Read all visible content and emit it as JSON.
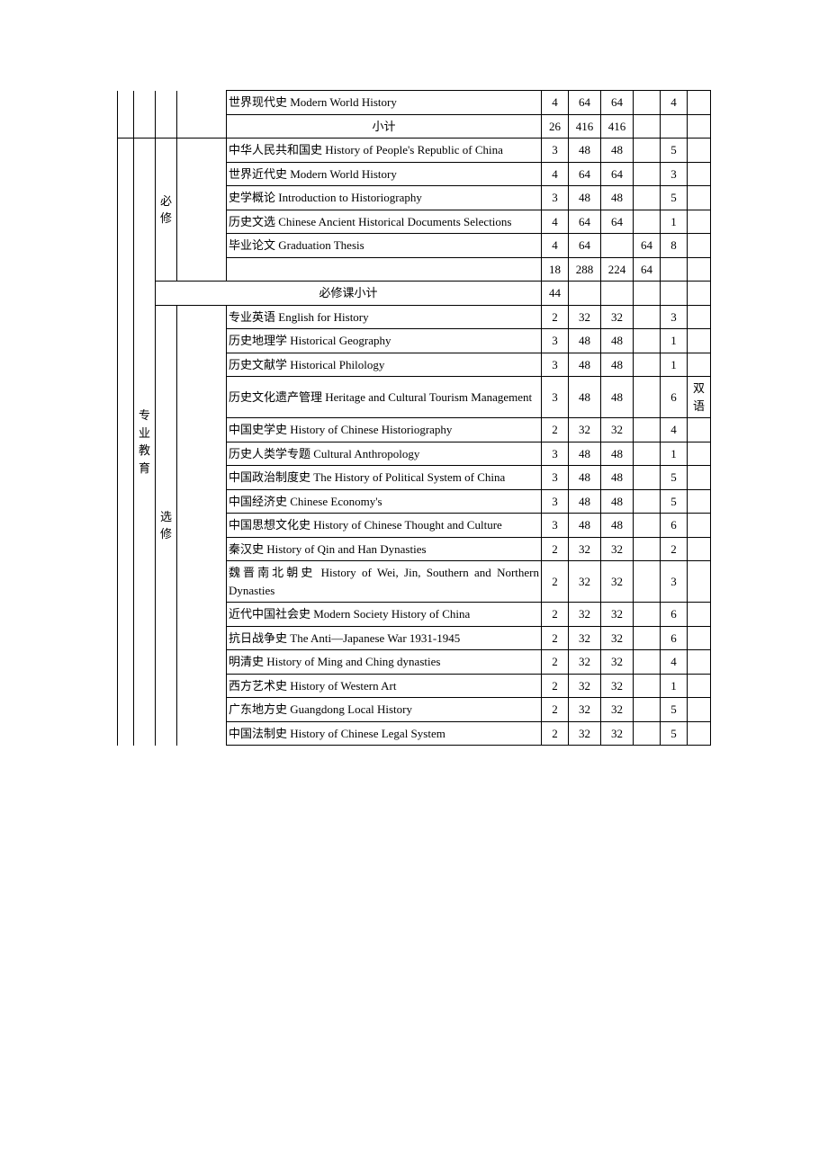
{
  "table": {
    "section1_category_label": "专业教育",
    "section1_type_required": "必修",
    "section1_type_elective": "选修",
    "top_rows": [
      {
        "course": "世界现代史 Modern World History",
        "c1": "4",
        "c2": "64",
        "c3": "64",
        "c4": "",
        "c5": "4",
        "c6": ""
      },
      {
        "course": "小计",
        "c1": "26",
        "c2": "416",
        "c3": "416",
        "c4": "",
        "c5": "",
        "c6": ""
      }
    ],
    "required_rows": [
      {
        "course": "中华人民共和国史 History of People's Republic of China",
        "c1": "3",
        "c2": "48",
        "c3": "48",
        "c4": "",
        "c5": "5",
        "c6": ""
      },
      {
        "course": "世界近代史 Modern World History",
        "c1": "4",
        "c2": "64",
        "c3": "64",
        "c4": "",
        "c5": "3",
        "c6": ""
      },
      {
        "course": "史学概论 Introduction to Historiography",
        "c1": "3",
        "c2": "48",
        "c3": "48",
        "c4": "",
        "c5": "5",
        "c6": ""
      },
      {
        "course": "历史文选 Chinese Ancient Historical Documents Selections",
        "c1": "4",
        "c2": "64",
        "c3": "64",
        "c4": "",
        "c5": "1",
        "c6": ""
      },
      {
        "course": "毕业论文 Graduation Thesis",
        "c1": "4",
        "c2": "64",
        "c3": "",
        "c4": "64",
        "c5": "8",
        "c6": ""
      },
      {
        "course": "",
        "c1": "18",
        "c2": "288",
        "c3": "224",
        "c4": "64",
        "c5": "",
        "c6": ""
      }
    ],
    "req_subtotal": {
      "course": "必修课小计",
      "c1": "44",
      "c2": "",
      "c3": "",
      "c4": "",
      "c5": "",
      "c6": ""
    },
    "elective_rows": [
      {
        "course": "专业英语 English for History",
        "c1": "2",
        "c2": "32",
        "c3": "32",
        "c4": "",
        "c5": "3",
        "c6": ""
      },
      {
        "course": "历史地理学 Historical Geography",
        "c1": "3",
        "c2": "48",
        "c3": "48",
        "c4": "",
        "c5": "1",
        "c6": ""
      },
      {
        "course": "历史文献学 Historical Philology",
        "c1": "3",
        "c2": "48",
        "c3": "48",
        "c4": "",
        "c5": "1",
        "c6": ""
      },
      {
        "course": "历史文化遗产管理 Heritage and Cultural Tourism Management",
        "c1": "3",
        "c2": "48",
        "c3": "48",
        "c4": "",
        "c5": "6",
        "c6": "双语"
      },
      {
        "course": "中国史学史 History of Chinese Historiography",
        "c1": "2",
        "c2": "32",
        "c3": "32",
        "c4": "",
        "c5": "4",
        "c6": ""
      },
      {
        "course": "历史人类学专题 Cultural Anthropology",
        "c1": "3",
        "c2": "48",
        "c3": "48",
        "c4": "",
        "c5": "1",
        "c6": ""
      },
      {
        "course": "中国政治制度史 The History of Political System of China",
        "c1": "3",
        "c2": "48",
        "c3": "48",
        "c4": "",
        "c5": "5",
        "c6": ""
      },
      {
        "course": "中国经济史 Chinese Economy's",
        "c1": "3",
        "c2": "48",
        "c3": "48",
        "c4": "",
        "c5": "5",
        "c6": ""
      },
      {
        "course": "中国思想文化史 History of Chinese Thought and Culture",
        "c1": "3",
        "c2": "48",
        "c3": "48",
        "c4": "",
        "c5": "6",
        "c6": ""
      },
      {
        "course": "秦汉史 History of Qin and Han Dynasties",
        "c1": "2",
        "c2": "32",
        "c3": "32",
        "c4": "",
        "c5": "2",
        "c6": ""
      },
      {
        "course": "魏晋南北朝史 History of Wei, Jin, Southern and Northern Dynasties",
        "c1": "2",
        "c2": "32",
        "c3": "32",
        "c4": "",
        "c5": "3",
        "c6": ""
      },
      {
        "course": "近代中国社会史 Modern Society History of China",
        "c1": "2",
        "c2": "32",
        "c3": "32",
        "c4": "",
        "c5": "6",
        "c6": ""
      },
      {
        "course": "抗日战争史 The Anti—Japanese War 1931-1945",
        "c1": "2",
        "c2": "32",
        "c3": "32",
        "c4": "",
        "c5": "6",
        "c6": ""
      },
      {
        "course": "明清史 History of Ming and Ching dynasties",
        "c1": "2",
        "c2": "32",
        "c3": "32",
        "c4": "",
        "c5": "4",
        "c6": ""
      },
      {
        "course": "西方艺术史 History of Western Art",
        "c1": "2",
        "c2": "32",
        "c3": "32",
        "c4": "",
        "c5": "1",
        "c6": ""
      },
      {
        "course": "广东地方史 Guangdong Local History",
        "c1": "2",
        "c2": "32",
        "c3": "32",
        "c4": "",
        "c5": "5",
        "c6": ""
      },
      {
        "course": "中国法制史 History of Chinese Legal System",
        "c1": "2",
        "c2": "32",
        "c3": "32",
        "c4": "",
        "c5": "5",
        "c6": ""
      }
    ]
  },
  "style": {
    "background_color": "#ffffff",
    "border_color": "#000000",
    "text_color": "#000000",
    "font_size_pt": 10,
    "font_family": "SimSun"
  }
}
